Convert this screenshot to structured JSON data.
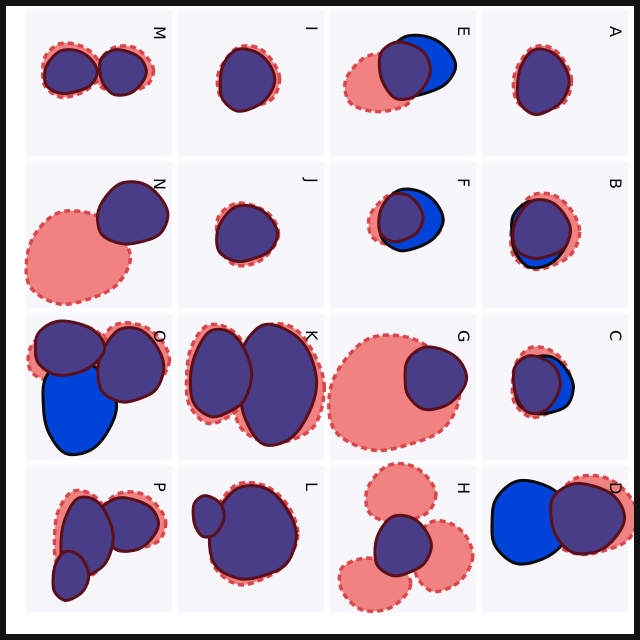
{
  "colors": {
    "ground_truth_fill": "#0043d8",
    "ground_truth_stroke": "#0b0b0b",
    "prediction_fill": "#f08282",
    "prediction_stroke": "#d9474b",
    "overlap_fill": "#493d87",
    "overlap_stroke": "#5a0f1a",
    "inner_dash": "#24115f",
    "frame": "#111111",
    "cell_bg": "#f7f7fb"
  },
  "panels": [
    {
      "id": "A",
      "label": "A"
    },
    {
      "id": "B",
      "label": "B"
    },
    {
      "id": "C",
      "label": "C"
    },
    {
      "id": "D",
      "label": "D"
    },
    {
      "id": "E",
      "label": "E"
    },
    {
      "id": "F",
      "label": "F"
    },
    {
      "id": "G",
      "label": "G"
    },
    {
      "id": "H",
      "label": "H"
    },
    {
      "id": "I",
      "label": "I"
    },
    {
      "id": "J",
      "label": "J"
    },
    {
      "id": "K",
      "label": "K"
    },
    {
      "id": "L",
      "label": "L"
    },
    {
      "id": "M",
      "label": "M"
    },
    {
      "id": "N",
      "label": "N"
    },
    {
      "id": "O",
      "label": "O"
    },
    {
      "id": "P",
      "label": "P"
    }
  ],
  "orientation": "rotated-90-clockwise"
}
